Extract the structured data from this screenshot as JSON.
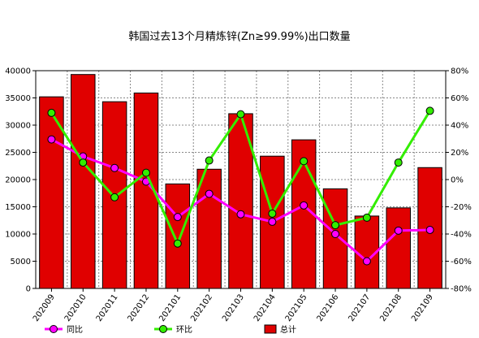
{
  "chart_data": {
    "type": "bar",
    "title": "韩国过去13个月精炼锌(Zn≥99.99%)出口数量",
    "categories": [
      "202009",
      "202010",
      "202011",
      "202012",
      "202101",
      "202102",
      "202103",
      "202104",
      "202105",
      "202106",
      "202107",
      "202108",
      "202109"
    ],
    "series": [
      {
        "name": "总计",
        "type": "bar",
        "axis": "left",
        "color": "#e00000",
        "values": [
          35200,
          39300,
          34300,
          35900,
          19200,
          21900,
          32100,
          24300,
          27300,
          18300,
          13300,
          14800,
          22200
        ]
      },
      {
        "name": "同比",
        "type": "line",
        "axis": "right",
        "color": "#ff00ff",
        "values": [
          29.5,
          17,
          8.5,
          -1.5,
          -27.5,
          -10.5,
          -25.5,
          -31,
          -19,
          -40,
          -60,
          -37.5,
          -37
        ]
      },
      {
        "name": "环比",
        "type": "line",
        "axis": "right",
        "color": "#33ee00",
        "values": [
          49,
          12.5,
          -13,
          5,
          -47,
          14,
          48,
          -25,
          13.5,
          -33.5,
          -28,
          12.5,
          50.5
        ]
      }
    ],
    "y_left": {
      "min": 0,
      "max": 40000,
      "ticks": [
        "0",
        "5000",
        "10000",
        "15000",
        "20000",
        "25000",
        "30000",
        "35000",
        "40000"
      ]
    },
    "y_right": {
      "min": -80,
      "max": 80,
      "ticks": [
        "-80%",
        "-60%",
        "-40%",
        "-20%",
        "0%",
        "20%",
        "40%",
        "60%",
        "80%"
      ]
    },
    "grid": true,
    "legend_position": "bottom-left"
  }
}
